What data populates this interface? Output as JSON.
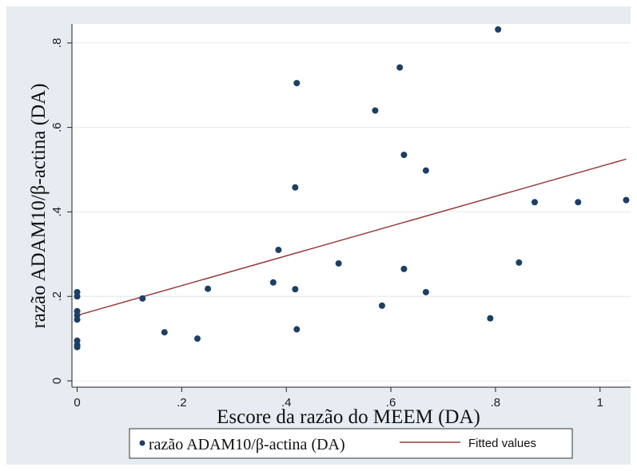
{
  "chart_data": {
    "type": "scatter",
    "xlabel": "Escore da razão do MEEM (DA)",
    "ylabel": "razão ADAM10/β-actina (DA)",
    "xlim": [
      -0.01,
      1.06
    ],
    "ylim": [
      -0.015,
      0.845
    ],
    "xticks": [
      0,
      0.2,
      0.4,
      0.6,
      0.8,
      1
    ],
    "xtick_labels": [
      "0",
      ".2",
      ".4",
      ".6",
      ".8",
      "1"
    ],
    "yticks": [
      0,
      0.2,
      0.4,
      0.6,
      0.8
    ],
    "ytick_labels": [
      "0",
      ".2",
      ".4",
      ".6",
      ".8"
    ],
    "grid": "horizontal",
    "legend_position": "bottom",
    "series": [
      {
        "name": "razão ADAM10/β-actina (DA)",
        "kind": "scatter",
        "color": "#1c3f66",
        "points": [
          [
            0,
            0.21
          ],
          [
            0,
            0.2
          ],
          [
            0,
            0.165
          ],
          [
            0,
            0.155
          ],
          [
            0,
            0.145
          ],
          [
            0,
            0.095
          ],
          [
            0,
            0.085
          ],
          [
            0,
            0.08
          ],
          [
            0.125,
            0.195
          ],
          [
            0.167,
            0.115
          ],
          [
            0.23,
            0.1
          ],
          [
            0.25,
            0.218
          ],
          [
            0.375,
            0.233
          ],
          [
            0.385,
            0.31
          ],
          [
            0.417,
            0.458
          ],
          [
            0.417,
            0.217
          ],
          [
            0.42,
            0.705
          ],
          [
            0.42,
            0.122
          ],
          [
            0.5,
            0.278
          ],
          [
            0.57,
            0.64
          ],
          [
            0.583,
            0.178
          ],
          [
            0.617,
            0.742
          ],
          [
            0.625,
            0.535
          ],
          [
            0.625,
            0.265
          ],
          [
            0.667,
            0.498
          ],
          [
            0.667,
            0.21
          ],
          [
            0.79,
            0.148
          ],
          [
            0.805,
            0.832
          ],
          [
            0.845,
            0.28
          ],
          [
            0.875,
            0.423
          ],
          [
            0.958,
            0.423
          ],
          [
            1.05,
            0.428
          ]
        ]
      },
      {
        "name": "Fitted values",
        "kind": "line",
        "color": "#9b3a3a",
        "points": [
          [
            0,
            0.155
          ],
          [
            1.05,
            0.525
          ]
        ]
      }
    ]
  }
}
